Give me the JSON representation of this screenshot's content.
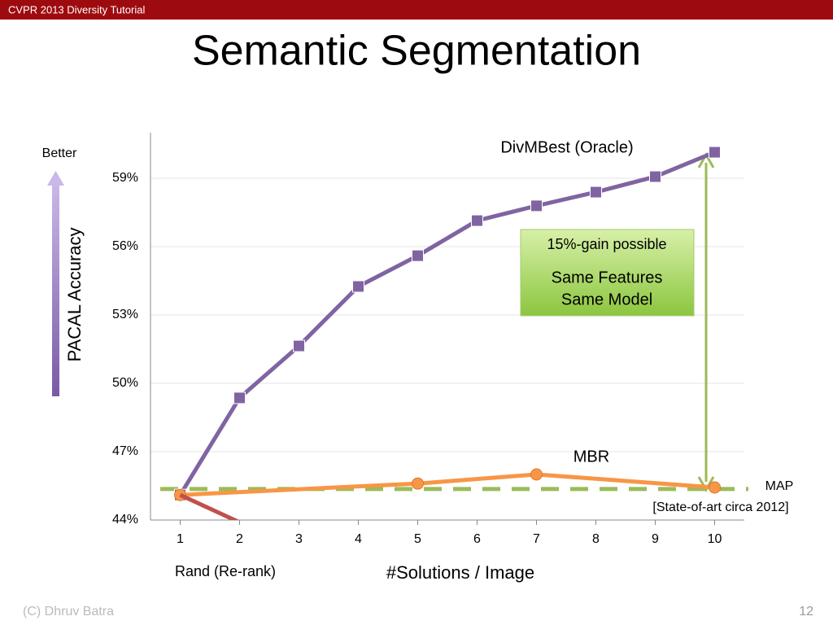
{
  "header": "CVPR 2013 Diversity Tutorial",
  "title": "Semantic Segmentation",
  "footer": "(C) Dhruv Batra",
  "page_number": "12",
  "chart_data": {
    "type": "line",
    "y_label": "PACAL Accuracy",
    "y_direction_label": "Better",
    "x_label": "#Solutions / Image",
    "x": [
      1,
      2,
      3,
      4,
      5,
      6,
      7,
      8,
      9,
      10
    ],
    "xlim": [
      0.5,
      10.5
    ],
    "xticks": [
      1,
      2,
      3,
      4,
      5,
      6,
      7,
      8,
      9,
      10
    ],
    "ylim": [
      44,
      61
    ],
    "yticks": [
      {
        "value": 44,
        "label": "44%"
      },
      {
        "value": 47,
        "label": "47%"
      },
      {
        "value": 50,
        "label": "50%"
      },
      {
        "value": 53,
        "label": "53%"
      },
      {
        "value": 56,
        "label": "56%"
      },
      {
        "value": 59,
        "label": "59%"
      }
    ],
    "grid": true,
    "series": [
      {
        "name": "DivMBest (Oracle)",
        "color": "#8064a2",
        "marker": "square",
        "values": [
          45.1,
          49.36,
          51.64,
          54.25,
          55.6,
          57.14,
          57.79,
          58.39,
          59.07,
          60.14
        ]
      },
      {
        "name": "MBR",
        "color": "#f79646",
        "marker": "circle",
        "x": [
          1,
          5,
          7,
          10
        ],
        "values": [
          45.1,
          45.6,
          46.0,
          45.43
        ]
      },
      {
        "name": "Rand (Re-rank)",
        "color": "#c0504d",
        "x": [
          1,
          2
        ],
        "values": [
          45.1,
          43.9
        ]
      }
    ],
    "reference_lines": [
      {
        "name": "MAP",
        "note": "[State-of-art circa 2012]",
        "value": 45.36,
        "color": "#9bbb59",
        "dashed": true
      }
    ],
    "annotations": [
      "15%-gain possible",
      "Same Features",
      "Same Model"
    ]
  }
}
